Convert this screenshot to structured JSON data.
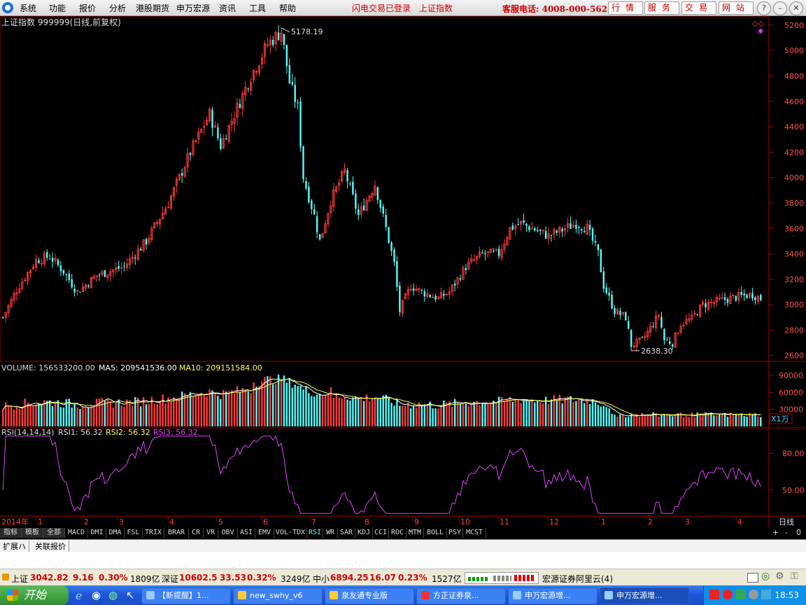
{
  "menubar": {
    "items": [
      "系统",
      "功能",
      "报价",
      "分析",
      "港股期货",
      "申万宏源",
      "资讯",
      "工具",
      "帮助"
    ],
    "login_status": "闪电交易已登录",
    "current_index": "上证指数",
    "hotline": "客服电话: 4008-000-562",
    "nav_buttons": [
      "行情",
      "服务",
      "交易",
      "网站"
    ]
  },
  "chart_header": {
    "title": "上证指数 999999(日线,前复权)"
  },
  "volume_header": {
    "volume": "VOLUME: 156533200.00",
    "ma5": "MA5: 209541536.00",
    "ma10": "MA10: 209151584.00"
  },
  "rsi_header": {
    "params": "RSI(14,14,14)",
    "rsi1": "RSI1: 56.32",
    "rsi2": "RSI2: 56.32",
    "rsi3": "RSI3: 56.32"
  },
  "time_axis": {
    "year": "2014年",
    "months": [
      "1",
      "2",
      "3",
      "4",
      "5",
      "6",
      "7",
      "8",
      "9",
      "10",
      "11",
      "12",
      "1",
      "2",
      "3",
      "4"
    ],
    "period": "日线"
  },
  "volume_unit": "X1万",
  "chart_data": [
    {
      "type": "candlestick",
      "title": "上证指数 999999(日线,前复权)",
      "ylim": [
        2560,
        5260
      ],
      "yticks": [
        2600,
        2800,
        3000,
        3200,
        3400,
        3600,
        3800,
        4000,
        4200,
        4400,
        4600,
        4800,
        5000,
        5200
      ],
      "annotations": [
        {
          "label": "5178.19",
          "value": 5178.19
        },
        {
          "label": "2638.30",
          "value": 2638.3
        }
      ],
      "trend": [
        [
          0,
          2900
        ],
        [
          5,
          3120
        ],
        [
          12,
          3350
        ],
        [
          17,
          3380
        ],
        [
          22,
          3260
        ],
        [
          27,
          3100
        ],
        [
          34,
          3230
        ],
        [
          44,
          3300
        ],
        [
          52,
          3500
        ],
        [
          60,
          3800
        ],
        [
          68,
          4200
        ],
        [
          75,
          4500
        ],
        [
          79,
          4250
        ],
        [
          84,
          4500
        ],
        [
          90,
          4800
        ],
        [
          96,
          5050
        ],
        [
          101,
          5150
        ],
        [
          104,
          4750
        ],
        [
          107,
          4550
        ],
        [
          109,
          4000
        ],
        [
          113,
          3700
        ],
        [
          115,
          3500
        ],
        [
          119,
          3820
        ],
        [
          124,
          4050
        ],
        [
          129,
          3700
        ],
        [
          135,
          3950
        ],
        [
          139,
          3600
        ],
        [
          142,
          3320
        ],
        [
          144,
          2950
        ],
        [
          148,
          3150
        ],
        [
          152,
          3100
        ],
        [
          158,
          3050
        ],
        [
          162,
          3100
        ],
        [
          168,
          3300
        ],
        [
          174,
          3400
        ],
        [
          180,
          3400
        ],
        [
          184,
          3600
        ],
        [
          188,
          3640
        ],
        [
          194,
          3580
        ],
        [
          198,
          3540
        ],
        [
          202,
          3580
        ],
        [
          208,
          3640
        ],
        [
          212,
          3600
        ],
        [
          216,
          3400
        ],
        [
          218,
          3150
        ],
        [
          222,
          2950
        ],
        [
          226,
          2900
        ],
        [
          228,
          2680
        ],
        [
          232,
          2720
        ],
        [
          236,
          2850
        ],
        [
          238,
          2920
        ],
        [
          240,
          2720
        ],
        [
          243,
          2700
        ],
        [
          246,
          2850
        ],
        [
          250,
          2890
        ],
        [
          254,
          3000
        ],
        [
          260,
          3030
        ],
        [
          266,
          3060
        ],
        [
          272,
          3080
        ],
        [
          275,
          3050
        ]
      ],
      "series_count": 276
    },
    {
      "type": "bar",
      "name": "VOLUME",
      "ylim": [
        0,
        100000
      ],
      "yticks": [
        30000,
        60000,
        90000
      ],
      "unit": "X1万"
    },
    {
      "type": "line",
      "name": "RSI",
      "ylim": [
        30,
        95
      ],
      "yticks": [
        50.0,
        80.0
      ]
    }
  ],
  "indicator_tabs": [
    "指标",
    "模板",
    "全部",
    "MACD",
    "DMI",
    "DMA",
    "FSL",
    "TRIX",
    "BRAR",
    "CR",
    "VR",
    "OBV",
    "ASI",
    "EMV",
    "VOL-TDX",
    "RSI",
    "WR",
    "SAR",
    "KDJ",
    "CCI",
    "ROC",
    "MTM",
    "BOLL",
    "PSY",
    "MCST"
  ],
  "active_tab": "RSI",
  "extension_tabs": [
    "扩展ハ",
    "关联报价"
  ],
  "status_bar": {
    "sh_label": "上证",
    "sh_value": "3042.82",
    "sh_change": "9.16",
    "sh_pct": "0.30%",
    "sh_amount": "1809亿",
    "sz_label": "深证",
    "sz_value": "10602.5",
    "sz_change": "33.53",
    "sz_pct": "0.32%",
    "sz_amount": "3249亿",
    "zx_label": "中小",
    "zx_value": "6894.25",
    "zx_change": "16.07",
    "zx_pct": "0.23%",
    "zx_amount": "1527亿",
    "server": "宏源证券阿里云(4)"
  },
  "taskbar": {
    "start": "开始",
    "items": [
      "【新提醒】1...",
      "new_swhy_v6",
      "泉友通专业版",
      "方正证券泉...",
      "申万宏源增...",
      "申万宏源增..."
    ],
    "clock": "18:53"
  },
  "colors": {
    "up": "#ff3c3c",
    "down": "#54fcfc",
    "rsi": "#e040fb",
    "ma5": "#ffffff",
    "ma10": "#ffff54"
  }
}
